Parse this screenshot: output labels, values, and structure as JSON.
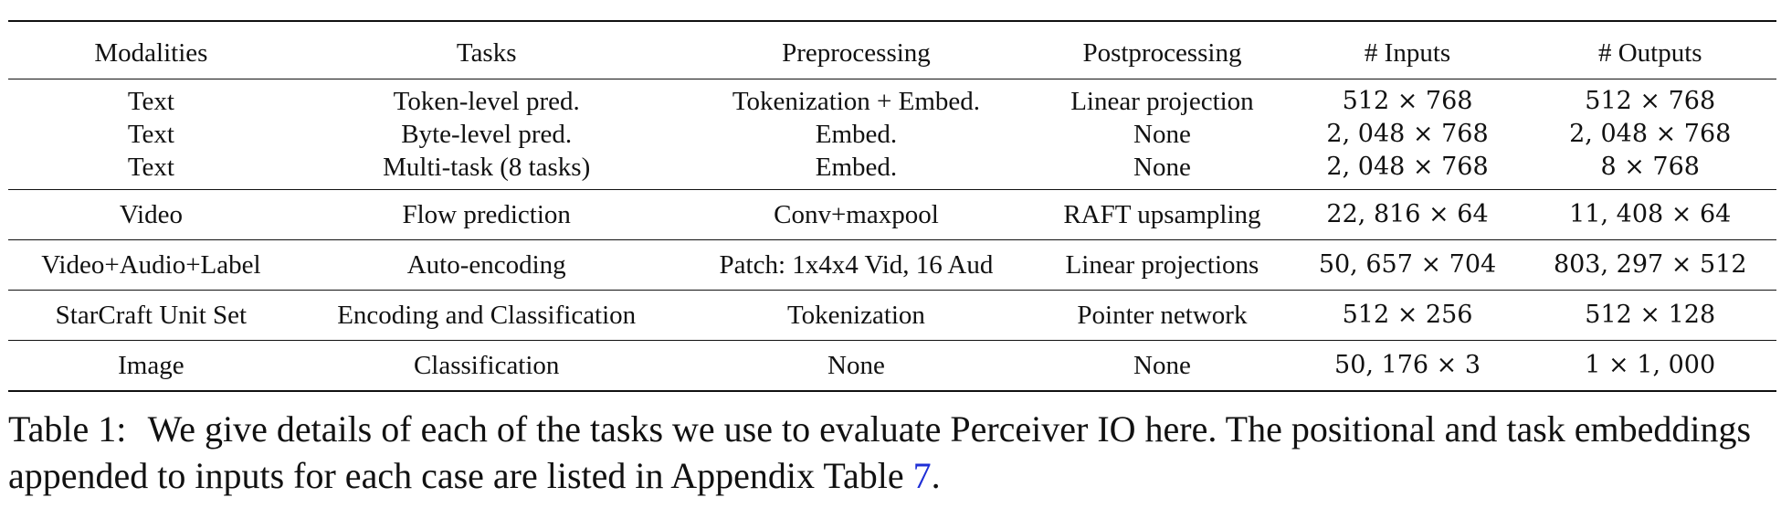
{
  "table": {
    "headers": [
      "Modalities",
      "Tasks",
      "Preprocessing",
      "Postprocessing",
      "# Inputs",
      "# Outputs"
    ],
    "groups": [
      [
        [
          "Text",
          "Token-level pred.",
          "Tokenization + Embed.",
          "Linear projection",
          "512 × 768",
          "512 × 768"
        ],
        [
          "Text",
          "Byte-level pred.",
          "Embed.",
          "None",
          "2, 048 × 768",
          "2, 048 × 768"
        ],
        [
          "Text",
          "Multi-task (8 tasks)",
          "Embed.",
          "None",
          "2, 048 × 768",
          "8 × 768"
        ]
      ],
      [
        [
          "Video",
          "Flow prediction",
          "Conv+maxpool",
          "RAFT upsampling",
          "22, 816 × 64",
          "11, 408 × 64"
        ]
      ],
      [
        [
          "Video+Audio+Label",
          "Auto-encoding",
          "Patch: 1x4x4 Vid, 16 Aud",
          "Linear projections",
          "50, 657 × 704",
          "803, 297 × 512"
        ]
      ],
      [
        [
          "StarCraft Unit Set",
          "Encoding and Classification",
          "Tokenization",
          "Pointer network",
          "512 × 256",
          "512 × 128"
        ]
      ],
      [
        [
          "Image",
          "Classification",
          "None",
          "None",
          "50, 176 × 3",
          "1 × 1, 000"
        ]
      ]
    ]
  },
  "caption": {
    "label": "Table 1:",
    "text": "We give details of each of the tasks we use to evaluate Perceiver IO here. The positional and task embeddings appended to inputs for each case are listed in Appendix Table",
    "ref": "7",
    "end": "."
  }
}
